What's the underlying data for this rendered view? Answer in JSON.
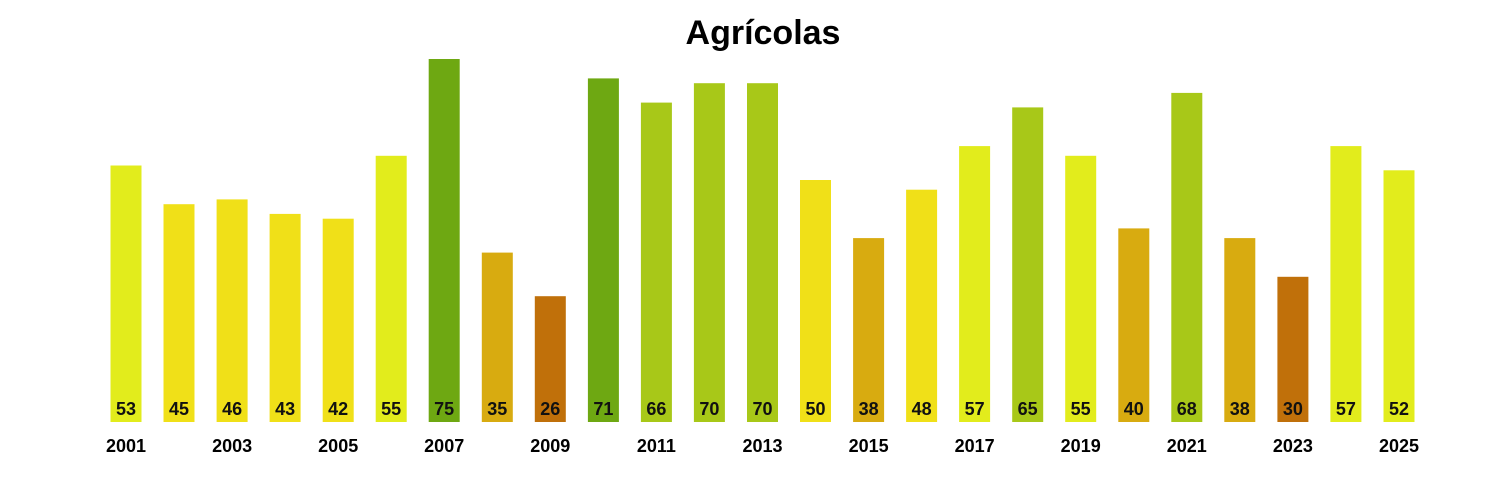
{
  "chart_data": {
    "type": "bar",
    "title": "Agrícolas",
    "xlabel": "",
    "ylabel": "",
    "categories": [
      "2001",
      "2002",
      "2003",
      "2004",
      "2005",
      "2006",
      "2007",
      "2008",
      "2009",
      "2010",
      "2011",
      "2012",
      "2013",
      "2014",
      "2015",
      "2016",
      "2017",
      "2018",
      "2019",
      "2020",
      "2021",
      "2022",
      "2023",
      "2024",
      "2025"
    ],
    "tick_labels": [
      "2001",
      "2003",
      "2005",
      "2007",
      "2009",
      "2011",
      "2013",
      "2015",
      "2017",
      "2019",
      "2021",
      "2023",
      "2025"
    ],
    "values": [
      53,
      45,
      46,
      43,
      42,
      55,
      75,
      35,
      26,
      71,
      66,
      70,
      70,
      50,
      38,
      48,
      57,
      65,
      55,
      40,
      68,
      38,
      30,
      57,
      52
    ],
    "ylim": [
      0,
      75
    ],
    "grid": false,
    "legend": "none",
    "colors": {
      "very_low": "#c0700a",
      "low": "#d8ab10",
      "mid": "#f0e018",
      "mid_high": "#e2ec1c",
      "high": "#a8c818",
      "very_high": "#6ea812"
    }
  }
}
